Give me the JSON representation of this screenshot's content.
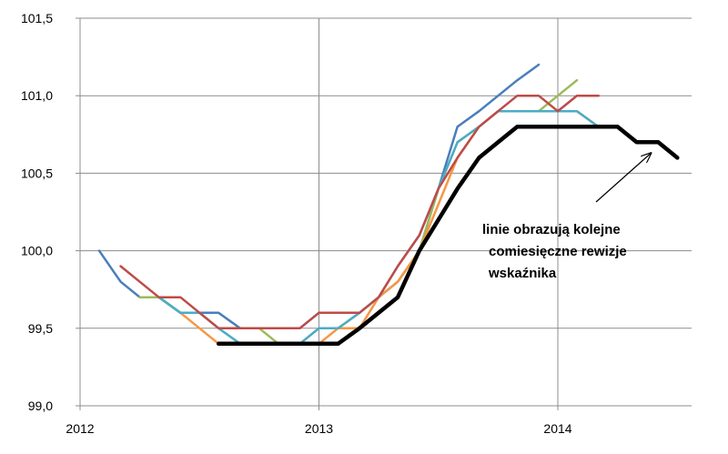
{
  "chart_data": {
    "type": "line",
    "x_axis": {
      "min": 2012.0,
      "max": 2014.56,
      "tick_values": [
        2012,
        2013,
        2014
      ],
      "tick_labels": [
        "2012",
        "2013",
        "2014"
      ],
      "gridlines": true
    },
    "y_axis": {
      "min": 99.0,
      "max": 101.5,
      "tick_values": [
        99.0,
        99.5,
        100.0,
        100.5,
        101.0,
        101.5
      ],
      "tick_labels": [
        "99,0",
        "99,5",
        "100,0",
        "100,5",
        "101,0",
        "101,5"
      ],
      "gridlines": true
    },
    "series": [
      {
        "color": "#4a7ebb",
        "width": 2.5,
        "points": [
          [
            2012.08,
            100.0
          ],
          [
            2012.17,
            99.8
          ],
          [
            2012.25,
            99.7
          ],
          [
            2012.33,
            99.7
          ],
          [
            2012.42,
            99.6
          ],
          [
            2012.5,
            99.6
          ],
          [
            2012.58,
            99.6
          ],
          [
            2012.67,
            99.5
          ],
          [
            2012.75,
            99.5
          ],
          [
            2012.83,
            99.5
          ],
          [
            2012.92,
            99.5
          ],
          [
            2013.0,
            99.6
          ],
          [
            2013.08,
            99.6
          ],
          [
            2013.17,
            99.6
          ],
          [
            2013.25,
            99.7
          ],
          [
            2013.33,
            99.8
          ],
          [
            2013.42,
            100.0
          ],
          [
            2013.5,
            100.4
          ],
          [
            2013.58,
            100.8
          ],
          [
            2013.67,
            100.9
          ],
          [
            2013.75,
            101.0
          ],
          [
            2013.83,
            101.1
          ],
          [
            2013.92,
            101.2
          ]
        ]
      },
      {
        "color": "#9bbb59",
        "width": 2.5,
        "points": [
          [
            2012.25,
            99.7
          ],
          [
            2012.33,
            99.7
          ],
          [
            2012.42,
            99.6
          ],
          [
            2012.5,
            99.6
          ],
          [
            2012.58,
            99.5
          ],
          [
            2012.67,
            99.5
          ],
          [
            2012.75,
            99.5
          ],
          [
            2012.83,
            99.4
          ],
          [
            2012.92,
            99.4
          ],
          [
            2013.0,
            99.5
          ],
          [
            2013.08,
            99.5
          ],
          [
            2013.17,
            99.6
          ],
          [
            2013.25,
            99.7
          ],
          [
            2013.33,
            99.8
          ],
          [
            2013.42,
            100.0
          ],
          [
            2013.5,
            100.4
          ],
          [
            2013.58,
            100.7
          ],
          [
            2013.67,
            100.8
          ],
          [
            2013.75,
            100.9
          ],
          [
            2013.83,
            100.9
          ],
          [
            2013.92,
            100.9
          ],
          [
            2014.0,
            101.0
          ],
          [
            2014.08,
            101.1
          ]
        ]
      },
      {
        "color": "#f79646",
        "width": 2.5,
        "points": [
          [
            2012.42,
            99.6
          ],
          [
            2012.5,
            99.5
          ],
          [
            2012.58,
            99.4
          ],
          [
            2012.67,
            99.4
          ],
          [
            2012.75,
            99.4
          ],
          [
            2012.83,
            99.4
          ],
          [
            2012.92,
            99.4
          ],
          [
            2013.0,
            99.4
          ],
          [
            2013.08,
            99.5
          ],
          [
            2013.17,
            99.5
          ],
          [
            2013.25,
            99.7
          ],
          [
            2013.33,
            99.8
          ],
          [
            2013.42,
            100.0
          ],
          [
            2013.5,
            100.3
          ],
          [
            2013.58,
            100.6
          ],
          [
            2013.67,
            100.8
          ],
          [
            2013.75,
            100.9
          ],
          [
            2013.83,
            100.9
          ],
          [
            2013.92,
            100.9
          ],
          [
            2014.0,
            100.9
          ],
          [
            2014.08,
            100.9
          ],
          [
            2014.17,
            100.8
          ],
          [
            2014.25,
            100.8
          ],
          [
            2014.33,
            100.7
          ]
        ]
      },
      {
        "color": "#8064a2",
        "width": 2.5,
        "points": [
          [
            2013.92,
            100.9
          ],
          [
            2014.0,
            100.9
          ],
          [
            2014.08,
            101.0
          ],
          [
            2014.17,
            101.0
          ]
        ]
      },
      {
        "color": "#4bacc6",
        "width": 2.5,
        "points": [
          [
            2012.33,
            99.7
          ],
          [
            2012.42,
            99.6
          ],
          [
            2012.5,
            99.6
          ],
          [
            2012.58,
            99.5
          ],
          [
            2012.67,
            99.4
          ],
          [
            2012.75,
            99.4
          ],
          [
            2012.83,
            99.4
          ],
          [
            2012.92,
            99.4
          ],
          [
            2013.0,
            99.5
          ],
          [
            2013.08,
            99.5
          ],
          [
            2013.17,
            99.6
          ],
          [
            2013.25,
            99.7
          ],
          [
            2013.33,
            99.9
          ],
          [
            2013.42,
            100.1
          ],
          [
            2013.5,
            100.4
          ],
          [
            2013.58,
            100.7
          ],
          [
            2013.67,
            100.8
          ],
          [
            2013.75,
            100.9
          ],
          [
            2013.83,
            100.9
          ],
          [
            2013.92,
            100.9
          ],
          [
            2014.0,
            100.9
          ],
          [
            2014.08,
            100.9
          ],
          [
            2014.17,
            100.8
          ]
        ]
      },
      {
        "color": "#be4b48",
        "width": 2.5,
        "points": [
          [
            2012.17,
            99.9
          ],
          [
            2012.25,
            99.8
          ],
          [
            2012.33,
            99.7
          ],
          [
            2012.42,
            99.7
          ],
          [
            2012.5,
            99.6
          ],
          [
            2012.58,
            99.5
          ],
          [
            2012.67,
            99.5
          ],
          [
            2012.75,
            99.5
          ],
          [
            2012.83,
            99.5
          ],
          [
            2012.92,
            99.5
          ],
          [
            2013.0,
            99.6
          ],
          [
            2013.08,
            99.6
          ],
          [
            2013.17,
            99.6
          ],
          [
            2013.25,
            99.7
          ],
          [
            2013.33,
            99.9
          ],
          [
            2013.42,
            100.1
          ],
          [
            2013.5,
            100.4
          ],
          [
            2013.58,
            100.6
          ],
          [
            2013.67,
            100.8
          ],
          [
            2013.75,
            100.9
          ],
          [
            2013.83,
            101.0
          ],
          [
            2013.92,
            101.0
          ],
          [
            2014.0,
            100.9
          ],
          [
            2014.08,
            101.0
          ],
          [
            2014.17,
            101.0
          ]
        ]
      },
      {
        "color": "#000000",
        "width": 4.5,
        "points": [
          [
            2012.58,
            99.4
          ],
          [
            2012.67,
            99.4
          ],
          [
            2012.75,
            99.4
          ],
          [
            2012.83,
            99.4
          ],
          [
            2012.92,
            99.4
          ],
          [
            2013.0,
            99.4
          ],
          [
            2013.08,
            99.4
          ],
          [
            2013.17,
            99.5
          ],
          [
            2013.25,
            99.6
          ],
          [
            2013.33,
            99.7
          ],
          [
            2013.42,
            100.0
          ],
          [
            2013.5,
            100.2
          ],
          [
            2013.58,
            100.4
          ],
          [
            2013.67,
            100.6
          ],
          [
            2013.75,
            100.7
          ],
          [
            2013.83,
            100.8
          ],
          [
            2013.92,
            100.8
          ],
          [
            2014.0,
            100.8
          ],
          [
            2014.08,
            100.8
          ],
          [
            2014.17,
            100.8
          ],
          [
            2014.25,
            100.8
          ],
          [
            2014.33,
            100.7
          ],
          [
            2014.42,
            100.7
          ],
          [
            2014.5,
            100.6
          ]
        ]
      }
    ],
    "annotation": {
      "lines": [
        "linie obrazują kolejne",
        "comiesięczne rewizje",
        "wskaźnika"
      ],
      "arrow_target": [
        2014.39,
        100.63
      ]
    }
  }
}
